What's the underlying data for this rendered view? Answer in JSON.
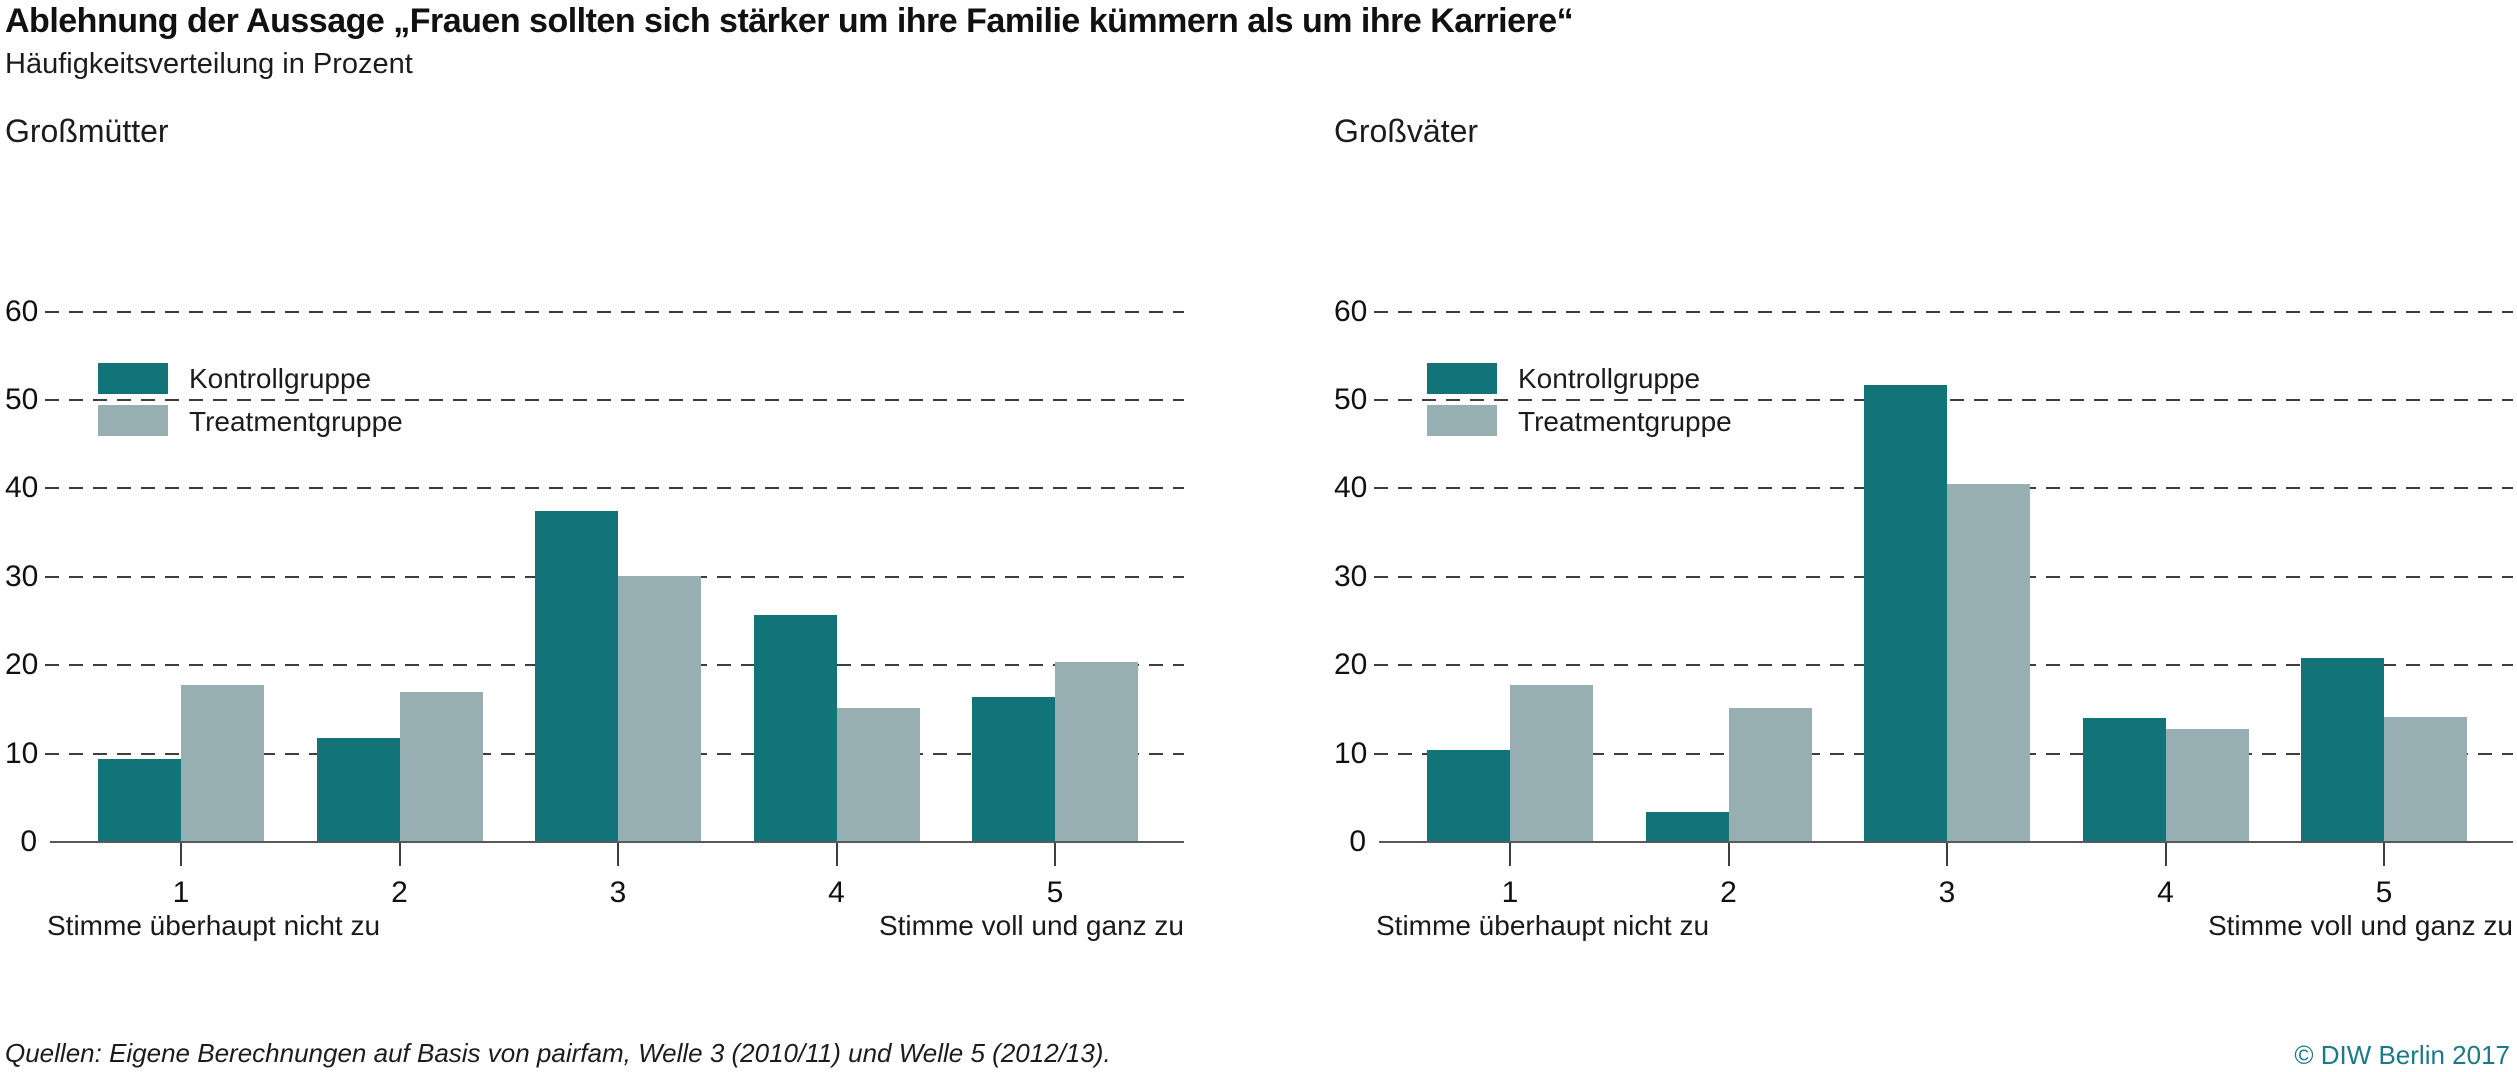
{
  "header": {
    "title": "Ablehnung der Aussage „Frauen sollten sich stärker um ihre Familie kümmern als um ihre Karriere“",
    "subtitle": "Häufigkeitsverteilung in Prozent"
  },
  "footer": {
    "source": "Quellen: Eigene Berechnungen auf Basis von pairfam, Welle 3 (2010/11) und Welle 5 (2012/13).",
    "copyright": "© DIW Berlin 2017"
  },
  "colors": {
    "kontrollgruppe": "#127378",
    "treatmentgruppe": "#97aeb2",
    "copyright": "#1b7a85",
    "gridline": "#3e3e3e",
    "baseline": "#58595b"
  },
  "chart_data": [
    {
      "type": "bar",
      "title": "Großmütter",
      "categories": [
        "1",
        "2",
        "3",
        "4",
        "5"
      ],
      "series": [
        {
          "name": "Kontrollgruppe",
          "color_key": "kontrollgruppe",
          "values": [
            9.3,
            11.6,
            37.3,
            25.6,
            16.3
          ]
        },
        {
          "name": "Treatmentgruppe",
          "color_key": "treatmentgruppe",
          "values": [
            17.7,
            16.8,
            30.0,
            15.0,
            20.3
          ]
        }
      ],
      "ylim": [
        0,
        60
      ],
      "yticks": [
        0,
        10,
        20,
        30,
        40,
        50,
        60
      ],
      "x_caption_left": "Stimme überhaupt nicht zu",
      "x_caption_right": "Stimme voll und ganz zu",
      "grid": "horizontal-dashed",
      "legend_position": "upper-left"
    },
    {
      "type": "bar",
      "title": "Großväter",
      "categories": [
        "1",
        "2",
        "3",
        "4",
        "5"
      ],
      "series": [
        {
          "name": "Kontrollgruppe",
          "color_key": "kontrollgruppe",
          "values": [
            10.3,
            3.3,
            51.6,
            13.9,
            20.7
          ]
        },
        {
          "name": "Treatmentgruppe",
          "color_key": "treatmentgruppe",
          "values": [
            17.7,
            15.1,
            40.4,
            12.7,
            14.0
          ]
        }
      ],
      "ylim": [
        0,
        60
      ],
      "yticks": [
        0,
        10,
        20,
        30,
        40,
        50,
        60
      ],
      "x_caption_left": "Stimme überhaupt nicht zu",
      "x_caption_right": "Stimme voll und ganz zu",
      "grid": "horizontal-dashed",
      "legend_position": "upper-left"
    }
  ]
}
